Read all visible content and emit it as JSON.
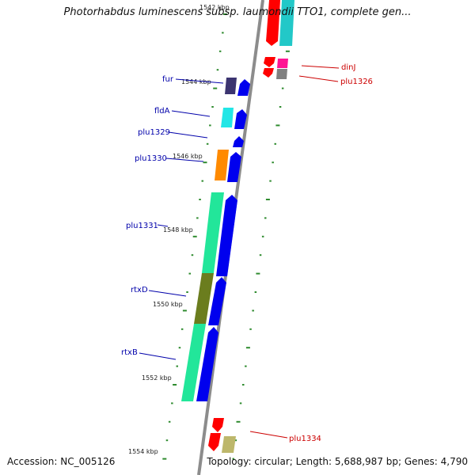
{
  "title": "Photorhabdus luminescens subsp. laumondii TTO1, complete gen...",
  "accession": "Accession: NC_005126",
  "topology": "Topology: circular; Length: 5,688,987 bp; Genes: 4,790",
  "colors": {
    "backbone": "#8c8c8c",
    "forward_arrow": "#0000ee",
    "reverse_arrow": "#ff0000",
    "tick": "#2e8b2e",
    "label_left": "#0000aa",
    "label_right": "#cc0000"
  },
  "tick_labels": [
    {
      "text": "1542 kbp"
    },
    {
      "text": "1544 kbp"
    },
    {
      "text": "1546 kbp"
    },
    {
      "text": "1548 kbp"
    },
    {
      "text": "1550 kbp"
    },
    {
      "text": "1552 kbp"
    },
    {
      "text": "1554 kbp"
    }
  ],
  "genes_left": [
    {
      "name": "fur"
    },
    {
      "name": "fldA"
    },
    {
      "name": "plu1329"
    },
    {
      "name": "plu1330"
    },
    {
      "name": "plu1331"
    },
    {
      "name": "rtxD"
    },
    {
      "name": "rtxB"
    }
  ],
  "genes_right": [
    {
      "name": "dinJ"
    },
    {
      "name": "plu1326"
    },
    {
      "name": "plu1334"
    }
  ]
}
